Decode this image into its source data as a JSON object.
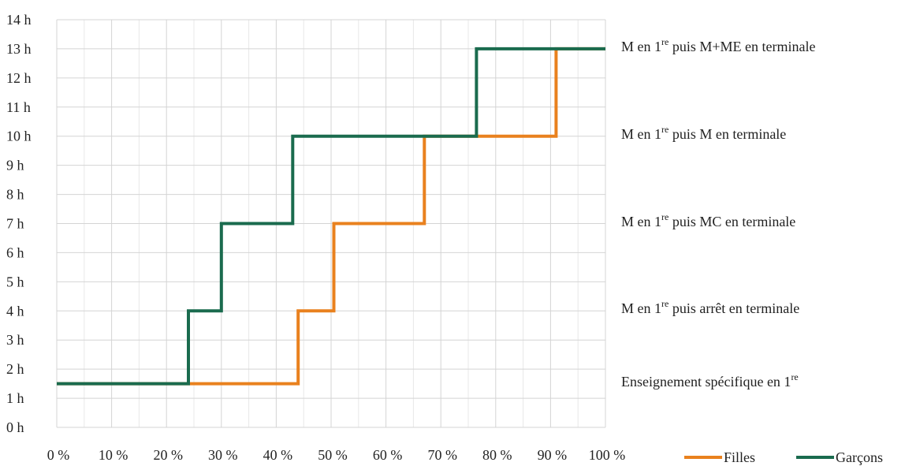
{
  "chart_data": {
    "type": "line",
    "step": true,
    "xlim": [
      0,
      100
    ],
    "ylim": [
      0,
      14
    ],
    "x_ticks": [
      "0 %",
      "10 %",
      "20 %",
      "30 %",
      "40 %",
      "50 %",
      "60 %",
      "70 %",
      "80 %",
      "90 %",
      "100 %"
    ],
    "y_ticks": [
      "0 h",
      "1 h",
      "2 h",
      "3 h",
      "4 h",
      "5 h",
      "6 h",
      "7 h",
      "8 h",
      "9 h",
      "10 h",
      "11 h",
      "12 h",
      "13 h",
      "14 h"
    ],
    "grid": true,
    "legend_position": "bottom-right",
    "series": [
      {
        "name": "Filles",
        "color": "#E9811E",
        "points": [
          [
            0,
            1.5
          ],
          [
            44,
            1.5
          ],
          [
            44,
            4
          ],
          [
            50.5,
            4
          ],
          [
            50.5,
            7
          ],
          [
            67,
            7
          ],
          [
            67,
            10
          ],
          [
            91,
            10
          ],
          [
            91,
            13
          ],
          [
            100,
            13
          ]
        ]
      },
      {
        "name": "Garçons",
        "color": "#1A6B4E",
        "points": [
          [
            0,
            1.5
          ],
          [
            24,
            1.5
          ],
          [
            24,
            4
          ],
          [
            30,
            4
          ],
          [
            30,
            7
          ],
          [
            43,
            7
          ],
          [
            43,
            10
          ],
          [
            76.5,
            10
          ],
          [
            76.5,
            13
          ],
          [
            100,
            13
          ]
        ]
      }
    ],
    "annotations": [
      {
        "id": "a5",
        "y": 13,
        "parts": [
          "M en 1",
          "re",
          " puis M+ME en terminale"
        ]
      },
      {
        "id": "a4",
        "y": 10,
        "parts": [
          "M en 1",
          "re",
          " puis M en terminale"
        ]
      },
      {
        "id": "a3",
        "y": 7,
        "parts": [
          "M en 1",
          "re",
          " puis MC en terminale"
        ]
      },
      {
        "id": "a2",
        "y": 4,
        "parts": [
          "M en 1",
          "re",
          " puis arrêt en terminale"
        ]
      },
      {
        "id": "a1",
        "y": 1.5,
        "parts": [
          "Enseignement spécifique en 1",
          "re",
          ""
        ]
      }
    ]
  }
}
